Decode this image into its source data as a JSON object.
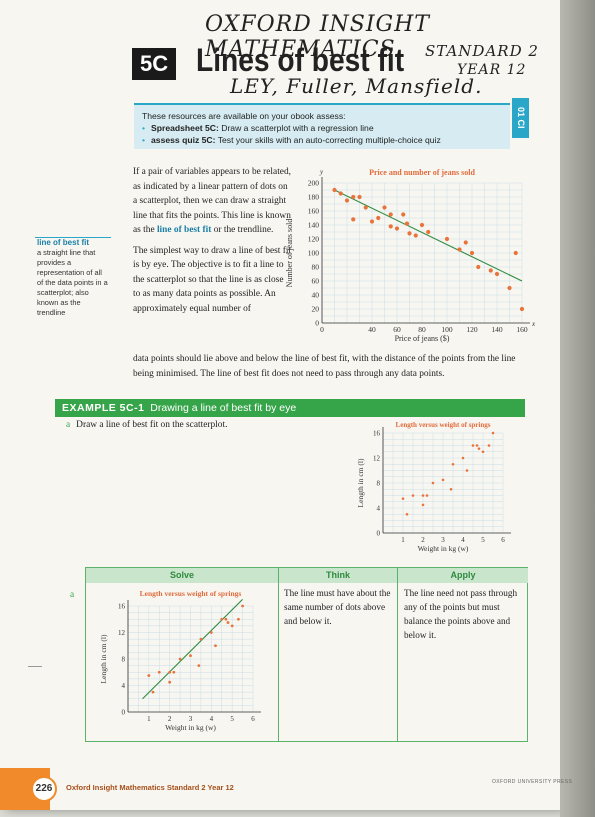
{
  "handwriting": {
    "line1": "OXFORD INSIGHT MATHEMATICS",
    "line2a": "STANDARD 2",
    "line2b": "YEAR 12",
    "line3": "LEY, Fuller, Mansfield."
  },
  "header": {
    "section": "5C",
    "title": "Lines of best fit"
  },
  "resources": {
    "intro": "These resources are available on your obook assess:",
    "items": [
      {
        "bold": "Spreadsheet 5C:",
        "text": " Draw a scatterplot with a regression line"
      },
      {
        "bold": "assess quiz 5C:",
        "text": " Test your skills with an auto-correcting multiple-choice quiz"
      }
    ],
    "side_tab": "01 CI"
  },
  "margin_def": {
    "term": "line of best fit",
    "text": "a straight line that provides a representation of all of the data points in a scatterplot; also known as the trendline"
  },
  "body": {
    "p1_a": "If a pair of variables appears to be related, as indicated by a linear pattern of dots on a scatterplot, then we can draw a straight line that fits the points. This line is known as the ",
    "p1_hl": "line of best fit",
    "p1_b": " or the trendline.",
    "p2": "The simplest way to draw a line of best fit is by eye. The objective is to fit a line to the scatterplot so that the line is as close to as many data points as possible. An approximately equal number of",
    "p3": "data points should lie above and below the line of best fit, with the distance of the points from the line being minimised. The line of best fit does not need to pass through any data points."
  },
  "example": {
    "label": "EXAMPLE 5C-1",
    "title": "Drawing a line of best fit by eye",
    "question_label": "a",
    "question": "Draw a line of best fit on the scatterplot.",
    "solve_head": "Solve",
    "think_head": "Think",
    "apply_head": "Apply",
    "answer_label": "a",
    "think": "The line must have about the same number of dots above and below it.",
    "apply": "The line need not pass through any of the points but must balance the points above and below it."
  },
  "footer": {
    "page": "226",
    "book": "Oxford Insight Mathematics Standard 2 Year 12",
    "publisher": "OXFORD UNIVERSITY PRESS"
  },
  "chart_data": [
    {
      "type": "scatter",
      "title": "Price and number of jeans sold",
      "xlabel": "Price of jeans ($)",
      "ylabel": "Number of jeans sold",
      "xaxis_letter": "x",
      "yaxis_letter": "y",
      "xlim": [
        0,
        160
      ],
      "ylim": [
        0,
        200
      ],
      "xticks": [
        0,
        40,
        60,
        80,
        100,
        120,
        140,
        160
      ],
      "yticks": [
        0,
        20,
        40,
        60,
        80,
        100,
        120,
        140,
        160,
        180,
        200
      ],
      "grid": true,
      "points": [
        [
          10,
          190
        ],
        [
          15,
          185
        ],
        [
          20,
          175
        ],
        [
          25,
          180
        ],
        [
          30,
          180
        ],
        [
          25,
          148
        ],
        [
          35,
          165
        ],
        [
          40,
          145
        ],
        [
          45,
          150
        ],
        [
          50,
          165
        ],
        [
          55,
          155
        ],
        [
          55,
          138
        ],
        [
          60,
          135
        ],
        [
          65,
          155
        ],
        [
          68,
          142
        ],
        [
          70,
          128
        ],
        [
          75,
          125
        ],
        [
          80,
          140
        ],
        [
          85,
          130
        ],
        [
          100,
          120
        ],
        [
          110,
          105
        ],
        [
          115,
          115
        ],
        [
          120,
          100
        ],
        [
          125,
          80
        ],
        [
          135,
          75
        ],
        [
          140,
          70
        ],
        [
          150,
          50
        ],
        [
          155,
          100
        ],
        [
          160,
          20
        ]
      ],
      "trendline": [
        [
          10,
          190
        ],
        [
          160,
          60
        ]
      ],
      "point_color": "#e8743b",
      "line_color": "#2e8a3e"
    },
    {
      "type": "scatter",
      "title": "Length versus weight of springs",
      "xlabel": "Weight in kg (w)",
      "ylabel": "Length in cm (l)",
      "xlim": [
        0,
        6
      ],
      "ylim": [
        0,
        16
      ],
      "xticks": [
        1,
        2,
        3,
        4,
        5,
        6
      ],
      "yticks": [
        0,
        4,
        8,
        12,
        16
      ],
      "grid": true,
      "points": [
        [
          1,
          5.5
        ],
        [
          1.2,
          3
        ],
        [
          1.5,
          6
        ],
        [
          2,
          6
        ],
        [
          2,
          4.5
        ],
        [
          2.2,
          6
        ],
        [
          2.5,
          8
        ],
        [
          3,
          8.5
        ],
        [
          3.4,
          7
        ],
        [
          3.5,
          11
        ],
        [
          4,
          12
        ],
        [
          4.5,
          14
        ],
        [
          4.7,
          14
        ],
        [
          5,
          13
        ],
        [
          5.3,
          14
        ],
        [
          5.5,
          16
        ],
        [
          4.8,
          13.5
        ],
        [
          4.2,
          10
        ]
      ],
      "point_color": "#e8743b"
    },
    {
      "type": "scatter",
      "title": "Length versus weight of springs",
      "xlabel": "Weight in kg (w)",
      "ylabel": "Length in cm (l)",
      "xlim": [
        0,
        6
      ],
      "ylim": [
        0,
        16
      ],
      "xticks": [
        1,
        2,
        3,
        4,
        5,
        6
      ],
      "yticks": [
        0,
        4,
        8,
        12,
        16
      ],
      "grid": true,
      "points": [
        [
          1,
          5.5
        ],
        [
          1.2,
          3
        ],
        [
          1.5,
          6
        ],
        [
          2,
          6
        ],
        [
          2,
          4.5
        ],
        [
          2.2,
          6
        ],
        [
          2.5,
          8
        ],
        [
          3,
          8.5
        ],
        [
          3.4,
          7
        ],
        [
          3.5,
          11
        ],
        [
          4,
          12
        ],
        [
          4.5,
          14
        ],
        [
          4.7,
          14
        ],
        [
          5,
          13
        ],
        [
          5.3,
          14
        ],
        [
          5.5,
          16
        ],
        [
          4.8,
          13.5
        ],
        [
          4.2,
          10
        ]
      ],
      "trendline": [
        [
          0.7,
          2
        ],
        [
          5.5,
          17
        ]
      ],
      "point_color": "#e8743b",
      "line_color": "#2e8a3e"
    }
  ]
}
